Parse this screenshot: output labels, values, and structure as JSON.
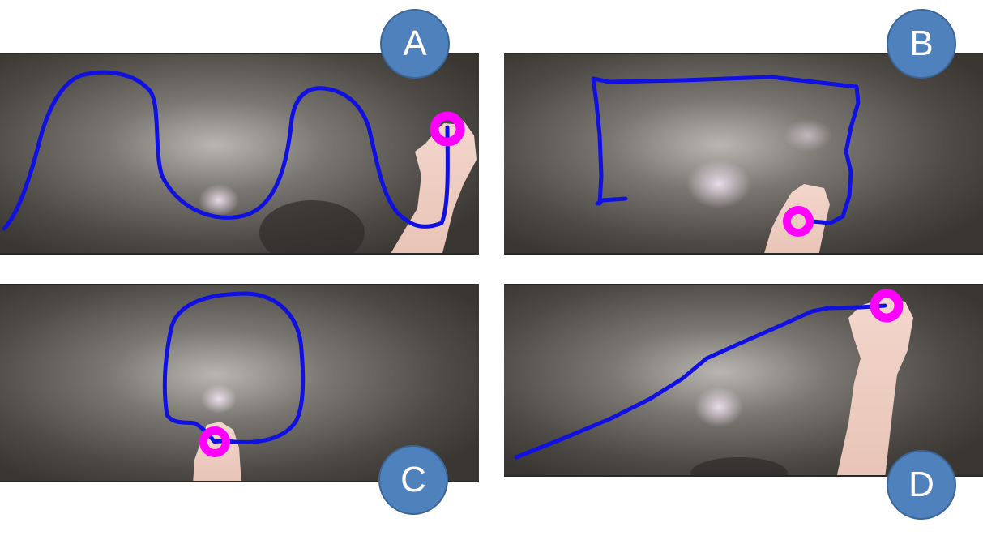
{
  "panels": [
    {
      "label": "A",
      "description_shape": "wave"
    },
    {
      "label": "B",
      "description_shape": "rectangle"
    },
    {
      "label": "C",
      "description_shape": "circle"
    },
    {
      "label": "D",
      "description_shape": "line"
    }
  ],
  "colors": {
    "trajectory": "#1010e0",
    "fingertip_marker": "#ff00ff",
    "badge_fill": "#4f81bd",
    "surface": "#4a4642"
  },
  "labels": {
    "a": "A",
    "b": "B",
    "c": "C",
    "d": "D"
  }
}
